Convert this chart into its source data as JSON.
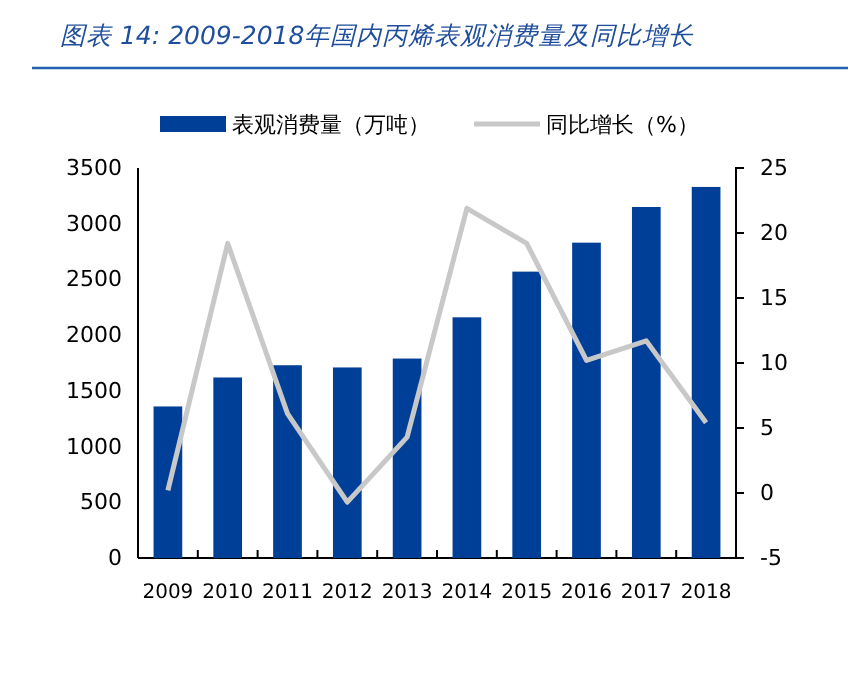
{
  "chart_data": {
    "type": "bar",
    "title": "图表 14:  2009-2018年国内丙烯表观消费量及同比增长",
    "categories": [
      "2009",
      "2010",
      "2011",
      "2012",
      "2013",
      "2014",
      "2015",
      "2016",
      "2017",
      "2018"
    ],
    "series": [
      {
        "name": "表观消费量（万吨）",
        "color": "#003f98",
        "values": [
          1360,
          1620,
          1730,
          1710,
          1790,
          2160,
          2570,
          2830,
          3150,
          3330
        ]
      },
      {
        "name": "同比增长（%）",
        "type": "line",
        "axis": "y2",
        "color": "#c8c8c8",
        "values": [
          0.2,
          19.2,
          6.1,
          -0.7,
          4.3,
          21.9,
          19.2,
          10.2,
          11.7,
          5.4
        ]
      }
    ],
    "ylim": [
      0,
      3500
    ],
    "yticks": [
      0,
      500,
      1000,
      1500,
      2000,
      2500,
      3000,
      3500
    ],
    "y2lim": [
      -5,
      25
    ],
    "y2ticks": [
      -5,
      0,
      5,
      10,
      15,
      20,
      25
    ],
    "legend": "top",
    "grid": false,
    "marker": "none",
    "line_style": "solid"
  }
}
